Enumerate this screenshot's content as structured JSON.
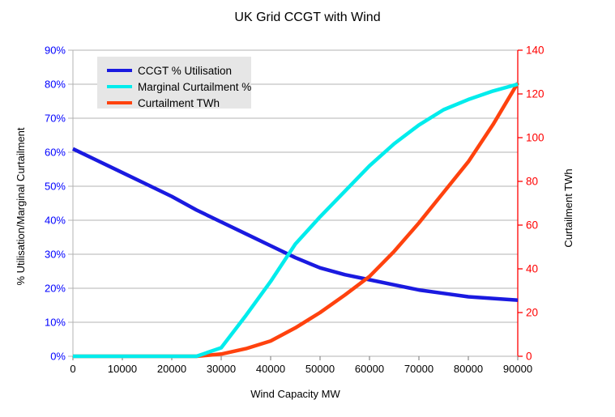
{
  "chart_data": {
    "type": "line",
    "title": "UK Grid CCGT with Wind",
    "xlabel": "Wind Capacity MW",
    "ylabel_left": "% Utilisation/Marginal Curtailment",
    "ylabel_right": "Curtailment TWh",
    "grid": true,
    "legend_position": "top-left-inside",
    "x_axis": {
      "min": 0,
      "max": 90000,
      "tick_labels": [
        "0",
        "10000",
        "20000",
        "30000",
        "40000",
        "50000",
        "60000",
        "70000",
        "80000",
        "90000"
      ],
      "label_color": "#000000"
    },
    "left_axis": {
      "min": 0,
      "max": 90,
      "unit": "%",
      "tick_labels": [
        "0%",
        "10%",
        "20%",
        "30%",
        "40%",
        "50%",
        "60%",
        "70%",
        "80%",
        "90%"
      ],
      "label_color": "#0000ff"
    },
    "right_axis": {
      "min": 0,
      "max": 140,
      "tick_labels": [
        "0",
        "20",
        "40",
        "60",
        "80",
        "100",
        "120",
        "140"
      ],
      "label_color": "#ff0000",
      "axis_color": "#ff0000"
    },
    "x": [
      0,
      5000,
      10000,
      15000,
      20000,
      25000,
      30000,
      35000,
      40000,
      45000,
      50000,
      55000,
      60000,
      65000,
      70000,
      75000,
      80000,
      85000,
      90000
    ],
    "series": [
      {
        "name": "CCGT % Utilisation",
        "axis": "left",
        "color": "#1a1ae0",
        "values": [
          61,
          57.5,
          54,
          50.5,
          47,
          43,
          39.5,
          36,
          32.5,
          29,
          26,
          24,
          22.5,
          21,
          19.5,
          18.5,
          17.5,
          17,
          16.5
        ]
      },
      {
        "name": "Curtailment TWh",
        "axis": "right",
        "color": "#ff420e",
        "values": [
          0,
          0,
          0,
          0,
          0,
          0,
          1,
          3.5,
          7,
          13,
          20,
          28,
          36.5,
          48,
          61,
          75,
          89,
          106,
          125
        ]
      },
      {
        "name": "Marginal Curtailment %",
        "axis": "left",
        "color": "#00ecec",
        "values": [
          0,
          0,
          0,
          0,
          0,
          0,
          2.5,
          12,
          22,
          33,
          41,
          48.5,
          56,
          62.5,
          68,
          72.5,
          75.5,
          78,
          80
        ]
      }
    ],
    "legend_order": [
      0,
      2,
      1
    ]
  },
  "colors": {
    "background": "#ffffff",
    "grid": "#b3b3b3",
    "axis_line": "#b3b3b3",
    "x_tick": "#777777",
    "legend_bg": "#e6e6e6"
  }
}
